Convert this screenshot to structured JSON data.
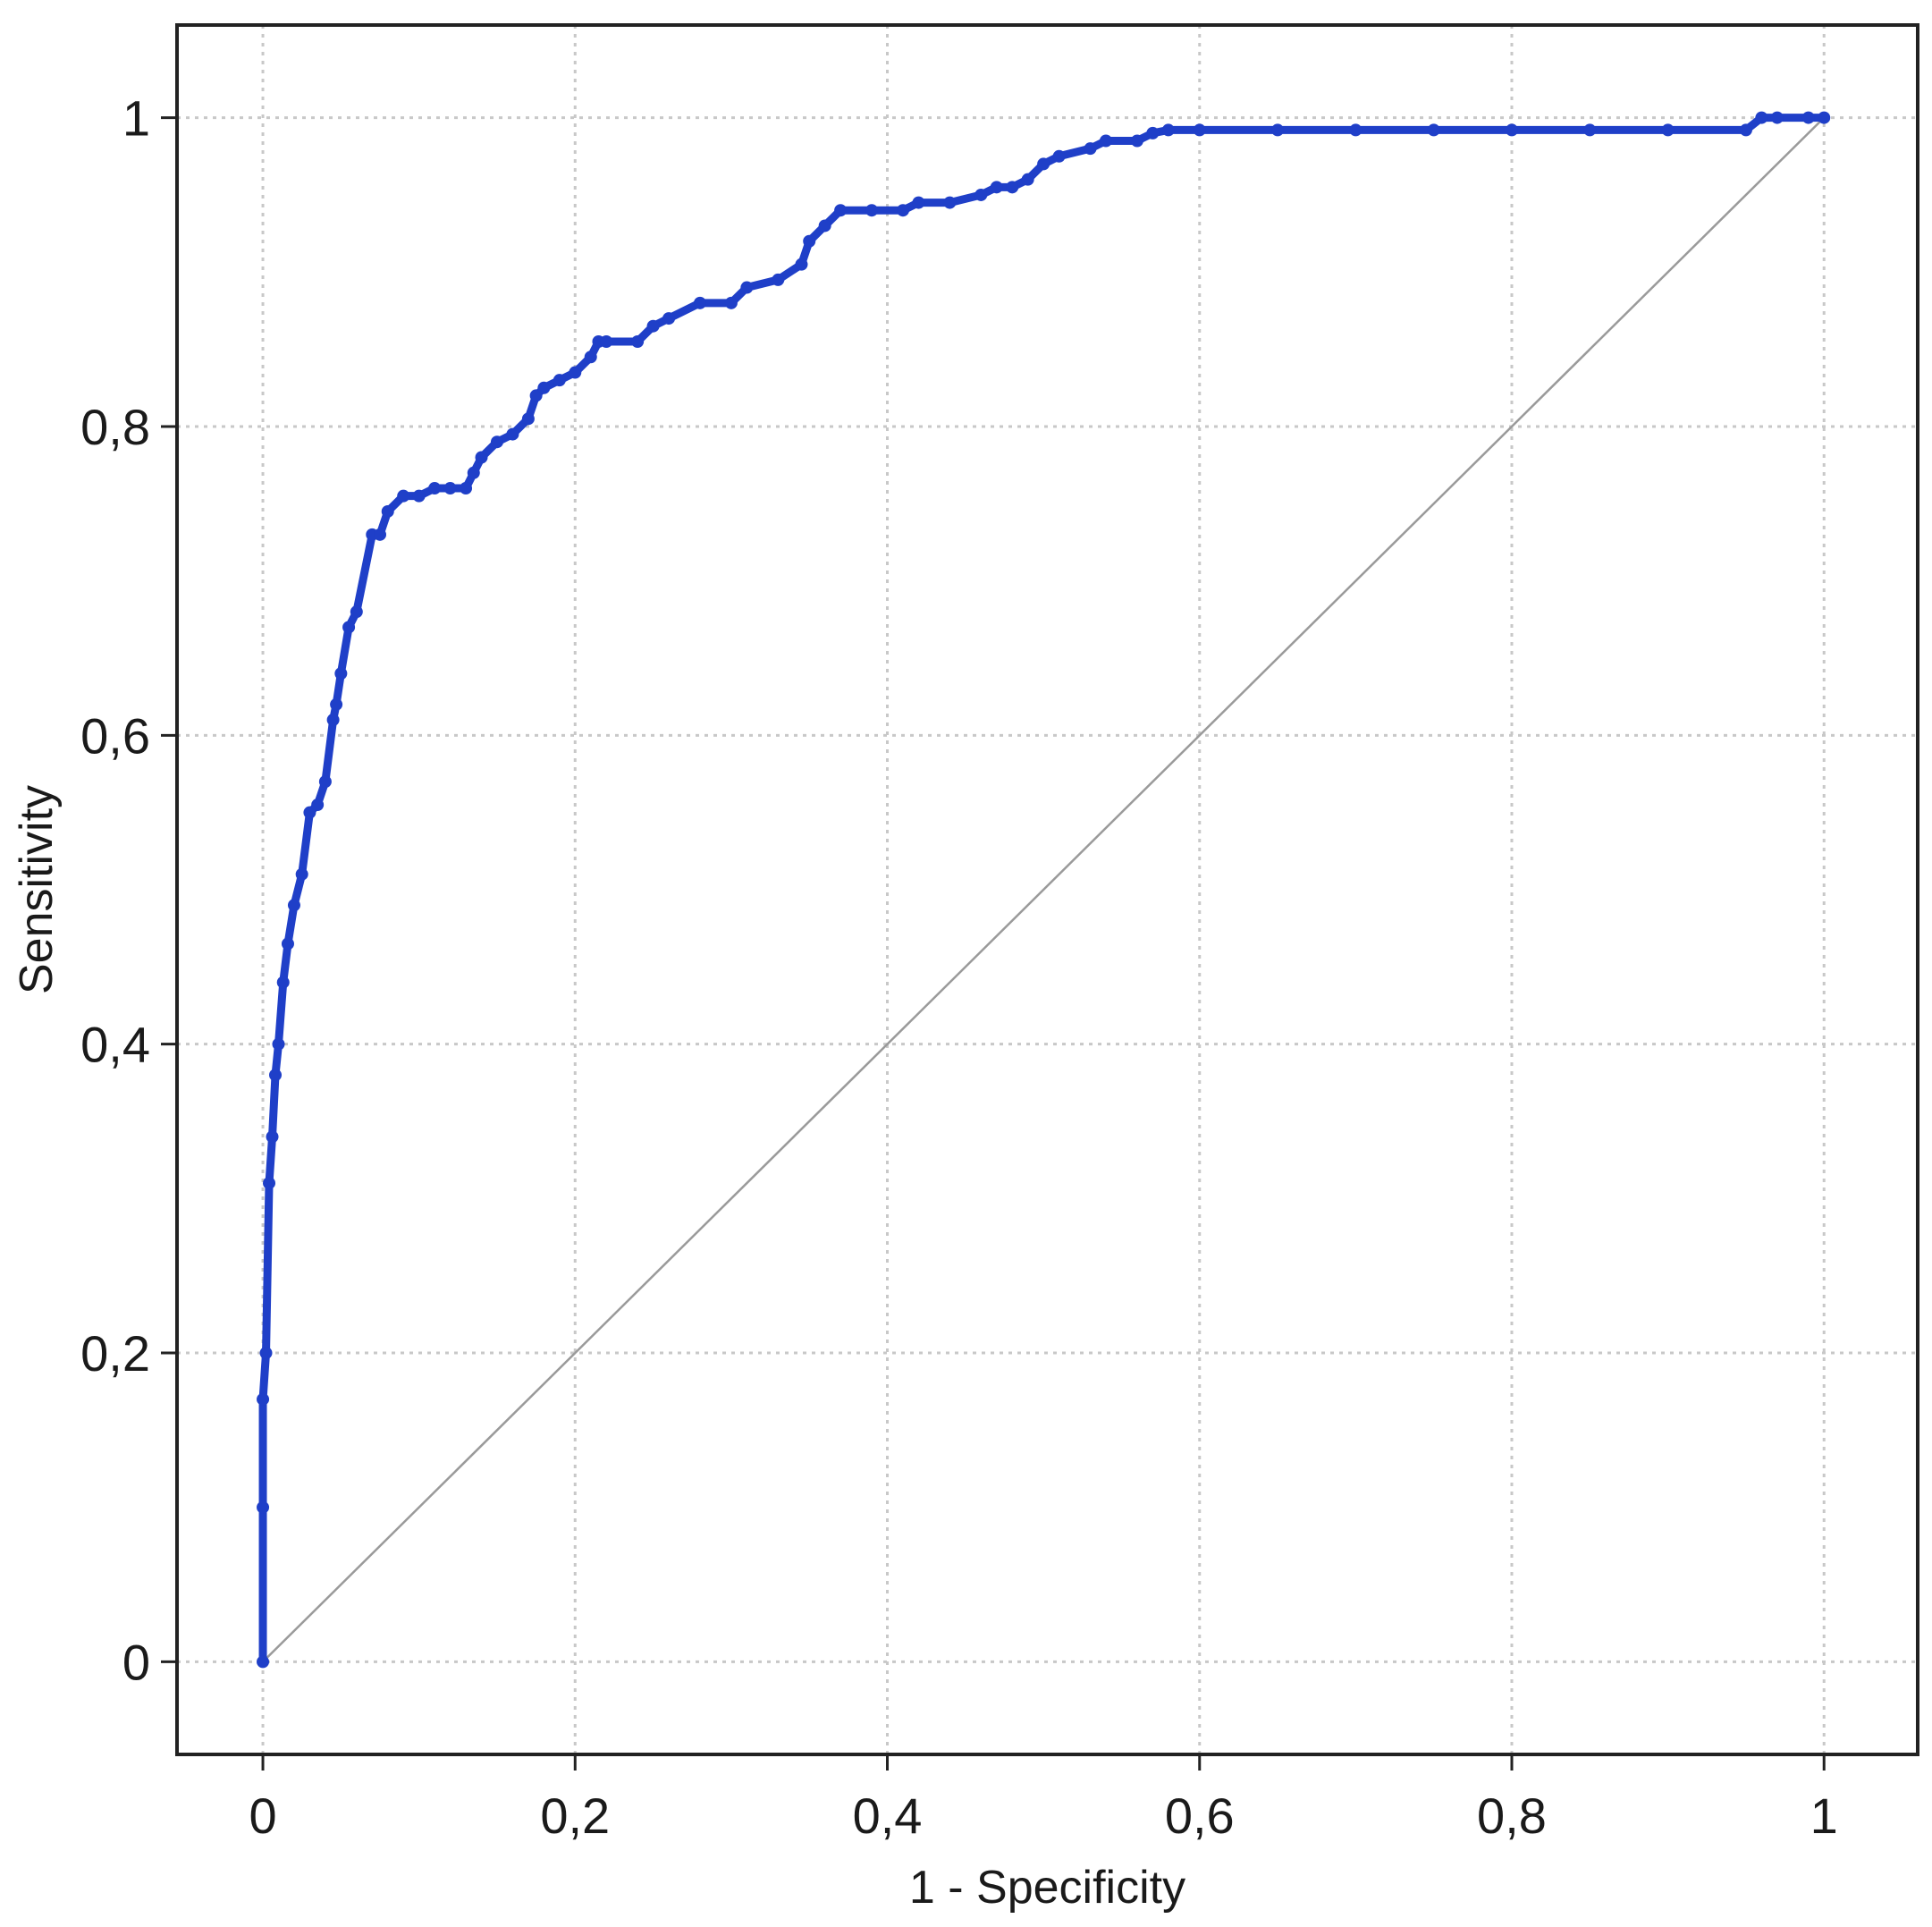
{
  "chart_data": {
    "type": "line",
    "title": "",
    "xlabel": "1 - Specificity",
    "ylabel": "Sensitivity",
    "xlim": [
      -0.055,
      1.06
    ],
    "ylim": [
      -0.06,
      1.06
    ],
    "xticks": [
      0,
      0.2,
      0.4,
      0.6,
      0.8,
      1
    ],
    "yticks": [
      0,
      0.2,
      0.4,
      0.6,
      0.8,
      1
    ],
    "xtick_labels": [
      "0",
      "0,2",
      "0,4",
      "0,6",
      "0,8",
      "1"
    ],
    "ytick_labels": [
      "0",
      "0,2",
      "0,4",
      "0,6",
      "0,8",
      "1"
    ],
    "grid": true,
    "colors": {
      "roc": "#1f3fc8",
      "reference": "#9a9a9a",
      "frame": "#222222"
    },
    "series": [
      {
        "kind": "roc-curve",
        "markers": true,
        "x": [
          0,
          0,
          0,
          0.002,
          0.004,
          0.006,
          0.008,
          0.01,
          0.013,
          0.016,
          0.02,
          0.025,
          0.03,
          0.035,
          0.04,
          0.045,
          0.047,
          0.05,
          0.055,
          0.06,
          0.07,
          0.075,
          0.08,
          0.09,
          0.1,
          0.11,
          0.12,
          0.13,
          0.135,
          0.14,
          0.15,
          0.16,
          0.17,
          0.175,
          0.18,
          0.19,
          0.2,
          0.21,
          0.215,
          0.22,
          0.24,
          0.25,
          0.26,
          0.28,
          0.3,
          0.31,
          0.33,
          0.345,
          0.35,
          0.36,
          0.37,
          0.39,
          0.41,
          0.42,
          0.44,
          0.46,
          0.47,
          0.48,
          0.49,
          0.5,
          0.51,
          0.53,
          0.54,
          0.56,
          0.57,
          0.58,
          0.6,
          0.65,
          0.7,
          0.75,
          0.8,
          0.85,
          0.9,
          0.95,
          0.96,
          0.97,
          0.99,
          1.0
        ],
        "y": [
          0,
          0.1,
          0.17,
          0.2,
          0.31,
          0.34,
          0.38,
          0.4,
          0.44,
          0.465,
          0.49,
          0.51,
          0.55,
          0.555,
          0.57,
          0.61,
          0.62,
          0.64,
          0.67,
          0.68,
          0.73,
          0.73,
          0.745,
          0.755,
          0.755,
          0.76,
          0.76,
          0.76,
          0.77,
          0.78,
          0.79,
          0.795,
          0.805,
          0.82,
          0.825,
          0.83,
          0.835,
          0.845,
          0.855,
          0.855,
          0.855,
          0.865,
          0.87,
          0.88,
          0.88,
          0.89,
          0.895,
          0.905,
          0.92,
          0.93,
          0.94,
          0.94,
          0.94,
          0.945,
          0.945,
          0.95,
          0.955,
          0.955,
          0.96,
          0.97,
          0.975,
          0.98,
          0.985,
          0.985,
          0.99,
          0.992,
          0.992,
          0.992,
          0.992,
          0.992,
          0.992,
          0.992,
          0.992,
          0.992,
          1.0,
          1.0,
          1.0,
          1.0
        ]
      },
      {
        "kind": "reference-diagonal",
        "markers": false,
        "x": [
          0,
          1
        ],
        "y": [
          0,
          1
        ]
      }
    ]
  }
}
